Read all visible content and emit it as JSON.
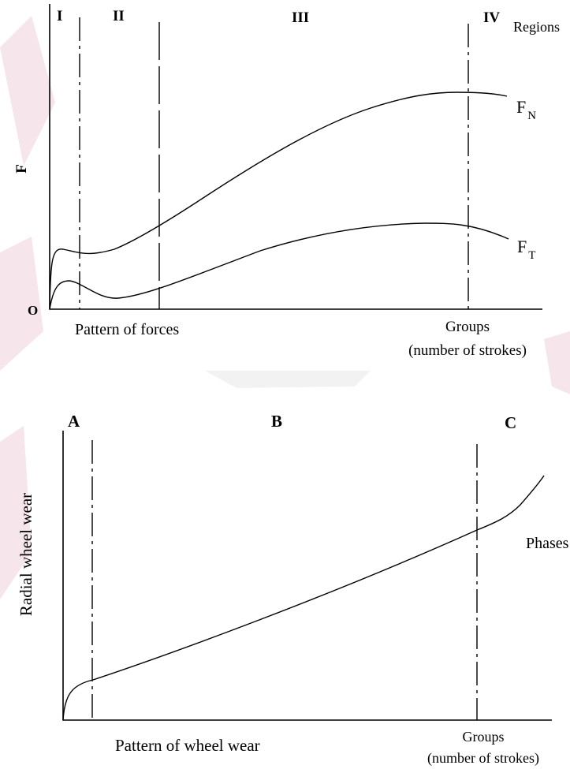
{
  "figure_top": {
    "region_numerals": [
      "I",
      "II",
      "III",
      "IV"
    ],
    "regions_label": "Regions",
    "y_label": "F",
    "origin_label": "O",
    "curve_label_normal": {
      "main": "F",
      "sub": "N"
    },
    "curve_label_tangential": {
      "main": "F",
      "sub": "T"
    },
    "caption": "Pattern of forces",
    "x_label_line1": "Groups",
    "x_label_line2": "(number of strokes)"
  },
  "figure_bottom": {
    "phase_letters": [
      "A",
      "B",
      "C"
    ],
    "phases_label": "Phases",
    "y_label": "Radial wheel wear",
    "caption": "Pattern of wheel wear",
    "x_label_line1": "Groups",
    "x_label_line2": "(number of strokes)"
  },
  "colors": {
    "line": "#000000",
    "background": "#ffffff",
    "watermark": "#e8b4c8"
  }
}
